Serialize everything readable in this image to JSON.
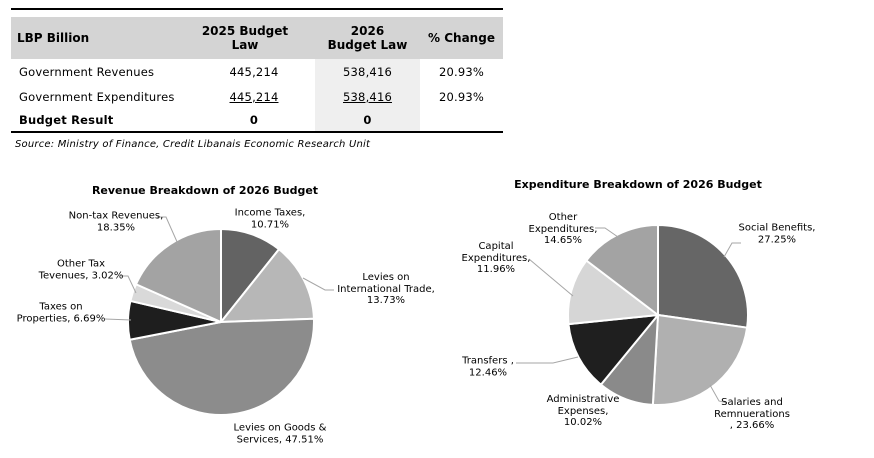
{
  "table": {
    "headers": [
      "LBP Billion",
      "2025 Budget\nLaw",
      "2026\nBudget Law",
      "% Change"
    ],
    "rows": [
      {
        "label": "Government Revenues",
        "v2025": "445,214",
        "v2026": "538,416",
        "change": "20.93%"
      },
      {
        "label": "Government Expenditures",
        "v2025": "445,214",
        "v2026": "538,416",
        "change": "20.93%"
      },
      {
        "label": "Budget Result",
        "v2025": "0",
        "v2026": "0",
        "change": ""
      }
    ],
    "source": "Source: Ministry of Finance, Credit Libanais Economic Research Unit"
  },
  "colors": {
    "table_header_bg": "#d4d4d4",
    "highlight_column_bg": "#efefef",
    "rule": "#000000",
    "leader_line": "#a6a6a6"
  },
  "chart_data": [
    {
      "type": "pie",
      "title": "Revenue Breakdown of 2026 Budget",
      "legend_position": "none",
      "labels_on": "outside-callouts",
      "slices": [
        {
          "name": "Income Taxes",
          "value": 10.71,
          "label": "Income Taxes,\n10.71%",
          "color": "#636363"
        },
        {
          "name": "Levies on International Trade",
          "value": 13.73,
          "label": "Levies on\nInternational Trade,\n13.73%",
          "color": "#b7b7b7"
        },
        {
          "name": "Levies on Goods & Services",
          "value": 47.51,
          "label": "Levies on Goods &\nServices, 47.51%",
          "color": "#8c8c8c"
        },
        {
          "name": "Taxes on Properties",
          "value": 6.69,
          "label": "Taxes on\nProperties, 6.69%",
          "color": "#1e1e1e"
        },
        {
          "name": "Other Tax Tevenues",
          "value": 3.02,
          "label": "Other Tax\nTevenues, 3.02%",
          "color": "#d9d9d9"
        },
        {
          "name": "Non-tax Revenues",
          "value": 18.35,
          "label": "Non-tax Revenues,\n18.35%",
          "color": "#a3a3a3"
        }
      ]
    },
    {
      "type": "pie",
      "title": "Expenditure Breakdown of 2026 Budget",
      "legend_position": "none",
      "labels_on": "outside-callouts",
      "slices": [
        {
          "name": "Social Benefits",
          "value": 27.25,
          "label": "Social Benefits,\n27.25%",
          "color": "#666666"
        },
        {
          "name": "Salaries and Remnuerations",
          "value": 23.66,
          "label": "Salaries and\nRemnuerations\n, 23.66%",
          "color": "#b0b0b0"
        },
        {
          "name": "Administrative Expenses",
          "value": 10.02,
          "label": "Administrative\nExpenses,\n10.02%",
          "color": "#8a8a8a"
        },
        {
          "name": "Transfers",
          "value": 12.46,
          "label": "Transfers ,\n12.46%",
          "color": "#1f1f1f"
        },
        {
          "name": "Capital Expenditures",
          "value": 11.96,
          "label": "Capital\nExpenditures,\n11.96%",
          "color": "#d6d6d6"
        },
        {
          "name": "Other Expenditures",
          "value": 14.65,
          "label": "Other\nExpenditures,\n14.65%",
          "color": "#a3a3a3"
        }
      ]
    }
  ]
}
